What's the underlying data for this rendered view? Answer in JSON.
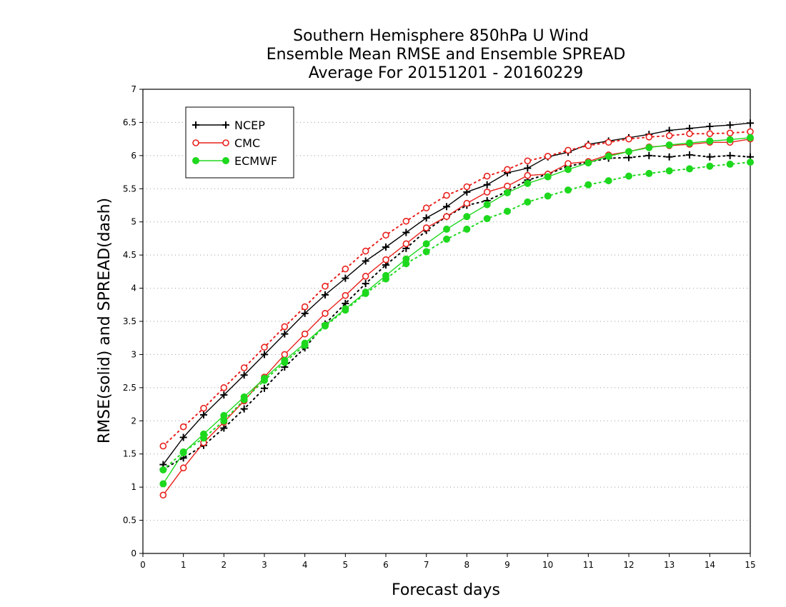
{
  "chart_data": {
    "type": "line",
    "title": [
      "Southern Hemisphere 850hPa U Wind",
      "Ensemble Mean RMSE and Ensemble SPREAD",
      "Average For 20151201 - 20160229"
    ],
    "xlabel": "Forecast days",
    "ylabel": "RMSE(solid) and SPREAD(dash)",
    "xlim": [
      0,
      15
    ],
    "ylim": [
      0,
      7
    ],
    "xticks": [
      0,
      1,
      2,
      3,
      4,
      5,
      6,
      7,
      8,
      9,
      10,
      11,
      12,
      13,
      14,
      15
    ],
    "yticks": [
      0,
      0.5,
      1,
      1.5,
      2,
      2.5,
      3,
      3.5,
      4,
      4.5,
      5,
      5.5,
      6,
      6.5,
      7
    ],
    "ytick_labels": [
      "0",
      "0.5",
      "1",
      "1.5",
      "2",
      "2.5",
      "3",
      "3.5",
      "4",
      "4.5",
      "5",
      "5.5",
      "6",
      "6.5",
      "7"
    ],
    "xtick_labels": [
      "0",
      "1",
      "2",
      "3",
      "4",
      "5",
      "6",
      "7",
      "8",
      "9",
      "10",
      "11",
      "12",
      "13",
      "14",
      "15"
    ],
    "grid": "horizontal dotted",
    "legend_position": "top-left",
    "x": [
      0.5,
      1,
      1.5,
      2,
      2.5,
      3,
      3.5,
      4,
      4.5,
      5,
      5.5,
      6,
      6.5,
      7,
      7.5,
      8,
      8.5,
      9,
      9.5,
      10,
      10.5,
      11,
      11.5,
      12,
      12.5,
      13,
      13.5,
      14,
      14.5,
      15
    ],
    "series": [
      {
        "name": "NCEP",
        "color": "#000000",
        "marker": "plus",
        "rmse": [
          1.34,
          1.75,
          2.09,
          2.39,
          2.69,
          3.0,
          3.31,
          3.62,
          3.9,
          4.15,
          4.41,
          4.62,
          4.84,
          5.06,
          5.23,
          5.45,
          5.56,
          5.74,
          5.81,
          5.98,
          6.05,
          6.17,
          6.22,
          6.27,
          6.32,
          6.38,
          6.41,
          6.44,
          6.46,
          6.49
        ],
        "spread": [
          1.27,
          1.44,
          1.63,
          1.89,
          2.18,
          2.49,
          2.81,
          3.1,
          3.46,
          3.77,
          4.07,
          4.35,
          4.6,
          4.87,
          5.08,
          5.25,
          5.32,
          5.46,
          5.63,
          5.72,
          5.84,
          5.9,
          5.96,
          5.97,
          6.0,
          5.98,
          6.01,
          5.98,
          6.0,
          5.98
        ]
      },
      {
        "name": "CMC",
        "color": "#e8201c",
        "marker": "circle-open",
        "rmse": [
          0.88,
          1.29,
          1.67,
          1.98,
          2.3,
          2.66,
          3.0,
          3.31,
          3.62,
          3.89,
          4.18,
          4.43,
          4.67,
          4.91,
          5.08,
          5.28,
          5.45,
          5.54,
          5.7,
          5.72,
          5.88,
          5.91,
          6.01,
          6.06,
          6.13,
          6.15,
          6.17,
          6.2,
          6.2,
          6.25
        ],
        "spread": [
          1.62,
          1.91,
          2.19,
          2.5,
          2.8,
          3.11,
          3.42,
          3.72,
          4.03,
          4.29,
          4.56,
          4.8,
          5.01,
          5.21,
          5.4,
          5.53,
          5.69,
          5.79,
          5.92,
          5.99,
          6.08,
          6.15,
          6.2,
          6.25,
          6.28,
          6.3,
          6.33,
          6.33,
          6.34,
          6.36
        ]
      },
      {
        "name": "ECMWF",
        "color": "#1ed81e",
        "marker": "circle-filled",
        "rmse": [
          1.05,
          1.52,
          1.8,
          2.08,
          2.36,
          2.64,
          2.91,
          3.17,
          3.44,
          3.69,
          3.94,
          4.19,
          4.44,
          4.67,
          4.89,
          5.08,
          5.26,
          5.44,
          5.58,
          5.68,
          5.79,
          5.89,
          5.99,
          6.06,
          6.12,
          6.16,
          6.19,
          6.22,
          6.24,
          6.27
        ],
        "spread": [
          1.26,
          1.53,
          1.74,
          2.0,
          2.32,
          2.61,
          2.88,
          3.14,
          3.43,
          3.67,
          3.92,
          4.14,
          4.37,
          4.55,
          4.74,
          4.89,
          5.05,
          5.16,
          5.3,
          5.39,
          5.48,
          5.56,
          5.62,
          5.69,
          5.73,
          5.77,
          5.8,
          5.84,
          5.87,
          5.9
        ]
      }
    ]
  }
}
